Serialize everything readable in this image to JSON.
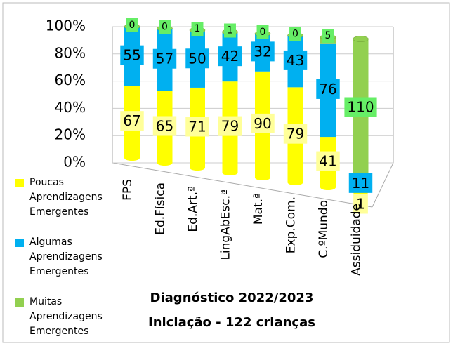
{
  "chart_data": {
    "type": "bar",
    "stacking": "percent",
    "title": "Diagnóstico 2022/2023",
    "subtitle": "Iniciação - 122 crianças",
    "categories": [
      "FPS",
      "Ed.Física",
      "Ed.Art.ª",
      "LingAbEsc.ª",
      "Mat.ª",
      "Exp.Com.",
      "C.ºMundo",
      "Assiduidade"
    ],
    "series": [
      {
        "name": "Poucas Aprendizagens Emergentes",
        "color": "#ffff00",
        "values": [
          67,
          65,
          71,
          79,
          90,
          79,
          41,
          1
        ]
      },
      {
        "name": "Algumas Aprendizagens Emergentes",
        "color": "#00b0f0",
        "values": [
          55,
          57,
          50,
          42,
          32,
          43,
          76,
          11
        ]
      },
      {
        "name": "Muitas Aprendizagens Emergentes",
        "color": "#92d050",
        "values": [
          0,
          0,
          1,
          1,
          0,
          0,
          5,
          110
        ]
      }
    ],
    "ylim": [
      0,
      100
    ],
    "yticks": [
      {
        "value": 0,
        "label": "0%"
      },
      {
        "value": 20,
        "label": "20%"
      },
      {
        "value": 40,
        "label": "40%"
      },
      {
        "value": 60,
        "label": "60%"
      },
      {
        "value": 80,
        "label": "80%"
      },
      {
        "value": 100,
        "label": "100%"
      }
    ],
    "grid": true,
    "legend": "left"
  }
}
